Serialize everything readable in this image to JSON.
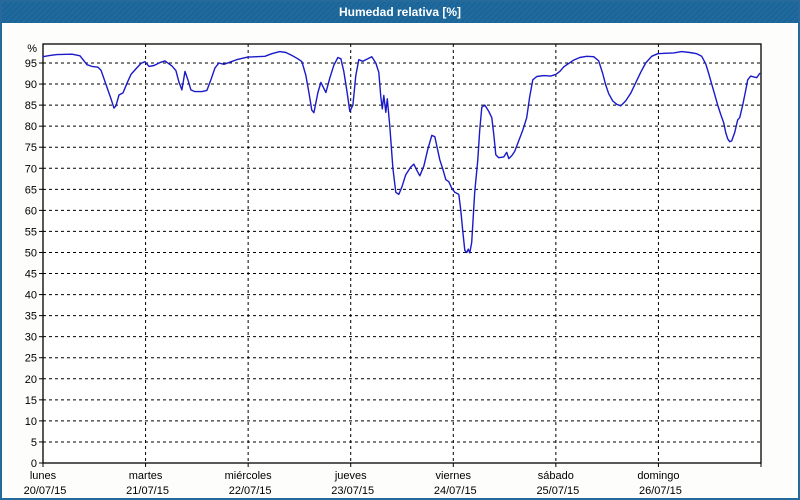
{
  "window": {
    "title": "Humedad relativa [%]"
  },
  "colors": {
    "titlebar_bg": "#1d689c",
    "outer_border": "#26699b",
    "page_bg": "#fdfefb",
    "plot_bg": "#ffffff",
    "grid": "#000000",
    "axis": "#000000",
    "line": "#1a1ac8",
    "title_text": "#ffffff",
    "label_text": "#000000"
  },
  "chart_data": {
    "type": "line",
    "title": "Humedad relativa [%]",
    "xlabel": "",
    "ylabel": "%",
    "ylim": [
      0,
      100
    ],
    "y_tick_step": 5,
    "y_ticks": [
      0,
      5,
      10,
      15,
      20,
      25,
      30,
      35,
      40,
      45,
      50,
      55,
      60,
      65,
      70,
      75,
      80,
      85,
      90,
      95
    ],
    "grid": "dashed",
    "legend_position": "none",
    "x_days": [
      {
        "name": "lunes",
        "date": "20/07/15"
      },
      {
        "name": "martes",
        "date": "21/07/15"
      },
      {
        "name": "miércoles",
        "date": "22/07/15"
      },
      {
        "name": "jueves",
        "date": "23/07/15"
      },
      {
        "name": "viernes",
        "date": "24/07/15"
      },
      {
        "name": "sábado",
        "date": "25/07/15"
      },
      {
        "name": "domingo",
        "date": "26/07/15"
      }
    ],
    "x_range_days": [
      0,
      7
    ],
    "series": [
      {
        "name": "Humedad relativa [%]",
        "color": "#1a1ac8",
        "points": [
          [
            0.0,
            96.5
          ],
          [
            0.068,
            96.8
          ],
          [
            0.136,
            97.0
          ],
          [
            0.283,
            97.1
          ],
          [
            0.361,
            96.7
          ],
          [
            0.429,
            94.6
          ],
          [
            0.477,
            94.2
          ],
          [
            0.536,
            94.0
          ],
          [
            0.565,
            93.3
          ],
          [
            0.624,
            89.2
          ],
          [
            0.663,
            86.5
          ],
          [
            0.692,
            84.3
          ],
          [
            0.711,
            84.8
          ],
          [
            0.741,
            87.4
          ],
          [
            0.78,
            87.9
          ],
          [
            0.819,
            90.2
          ],
          [
            0.858,
            92.3
          ],
          [
            0.906,
            93.6
          ],
          [
            0.955,
            94.9
          ],
          [
            0.994,
            95.3
          ],
          [
            1.033,
            94.2
          ],
          [
            1.082,
            94.4
          ],
          [
            1.14,
            95.1
          ],
          [
            1.189,
            95.5
          ],
          [
            1.257,
            94.3
          ],
          [
            1.296,
            93.2
          ],
          [
            1.325,
            90.5
          ],
          [
            1.354,
            88.6
          ],
          [
            1.384,
            93.0
          ],
          [
            1.413,
            91.0
          ],
          [
            1.442,
            88.6
          ],
          [
            1.481,
            88.2
          ],
          [
            1.549,
            88.2
          ],
          [
            1.598,
            88.5
          ],
          [
            1.637,
            91.0
          ],
          [
            1.676,
            93.8
          ],
          [
            1.715,
            95.0
          ],
          [
            1.764,
            94.7
          ],
          [
            1.822,
            95.2
          ],
          [
            1.89,
            95.8
          ],
          [
            1.997,
            96.4
          ],
          [
            2.085,
            96.5
          ],
          [
            2.163,
            96.6
          ],
          [
            2.231,
            97.2
          ],
          [
            2.309,
            97.7
          ],
          [
            2.368,
            97.5
          ],
          [
            2.426,
            96.8
          ],
          [
            2.485,
            96.0
          ],
          [
            2.524,
            95.3
          ],
          [
            2.563,
            92.0
          ],
          [
            2.592,
            88.0
          ],
          [
            2.621,
            83.8
          ],
          [
            2.641,
            83.2
          ],
          [
            2.68,
            88.0
          ],
          [
            2.709,
            90.4
          ],
          [
            2.738,
            89.0
          ],
          [
            2.758,
            88.0
          ],
          [
            2.797,
            91.5
          ],
          [
            2.836,
            94.5
          ],
          [
            2.875,
            96.3
          ],
          [
            2.904,
            96.0
          ],
          [
            2.933,
            93.0
          ],
          [
            2.962,
            88.5
          ],
          [
            2.991,
            83.5
          ],
          [
            3.021,
            85.0
          ],
          [
            3.05,
            92.0
          ],
          [
            3.079,
            95.8
          ],
          [
            3.118,
            95.4
          ],
          [
            3.157,
            95.9
          ],
          [
            3.206,
            96.5
          ],
          [
            3.245,
            95.0
          ],
          [
            3.274,
            92.8
          ],
          [
            3.293,
            87.0
          ],
          [
            3.308,
            84.1
          ],
          [
            3.323,
            87.3
          ],
          [
            3.342,
            83.3
          ],
          [
            3.357,
            86.5
          ],
          [
            3.381,
            80.0
          ],
          [
            3.411,
            70.0
          ],
          [
            3.44,
            64.3
          ],
          [
            3.469,
            63.8
          ],
          [
            3.498,
            65.5
          ],
          [
            3.537,
            68.5
          ],
          [
            3.586,
            70.3
          ],
          [
            3.615,
            71.0
          ],
          [
            3.645,
            69.5
          ],
          [
            3.674,
            68.2
          ],
          [
            3.713,
            70.5
          ],
          [
            3.752,
            74.5
          ],
          [
            3.791,
            77.8
          ],
          [
            3.82,
            77.5
          ],
          [
            3.869,
            72.0
          ],
          [
            3.898,
            69.8
          ],
          [
            3.927,
            67.3
          ],
          [
            3.956,
            66.8
          ],
          [
            3.985,
            65.3
          ],
          [
            4.015,
            64.3
          ],
          [
            4.054,
            63.8
          ],
          [
            4.073,
            60.0
          ],
          [
            4.093,
            55.0
          ],
          [
            4.112,
            50.5
          ],
          [
            4.132,
            50.0
          ],
          [
            4.146,
            50.8
          ],
          [
            4.161,
            49.9
          ],
          [
            4.18,
            52.4
          ],
          [
            4.209,
            64.3
          ],
          [
            4.239,
            72.0
          ],
          [
            4.258,
            79.0
          ],
          [
            4.278,
            84.5
          ],
          [
            4.307,
            85.0
          ],
          [
            4.346,
            83.5
          ],
          [
            4.375,
            82.0
          ],
          [
            4.395,
            78.0
          ],
          [
            4.414,
            73.2
          ],
          [
            4.443,
            72.5
          ],
          [
            4.492,
            72.7
          ],
          [
            4.521,
            73.8
          ],
          [
            4.541,
            72.3
          ],
          [
            4.57,
            73.0
          ],
          [
            4.599,
            74.0
          ],
          [
            4.638,
            76.5
          ],
          [
            4.677,
            79.0
          ],
          [
            4.716,
            82.0
          ],
          [
            4.745,
            87.0
          ],
          [
            4.775,
            91.0
          ],
          [
            4.814,
            91.8
          ],
          [
            4.882,
            92.0
          ],
          [
            4.95,
            91.9
          ],
          [
            4.999,
            92.3
          ],
          [
            5.038,
            93.0
          ],
          [
            5.077,
            94.1
          ],
          [
            5.125,
            94.9
          ],
          [
            5.174,
            95.7
          ],
          [
            5.233,
            96.3
          ],
          [
            5.301,
            96.6
          ],
          [
            5.369,
            96.5
          ],
          [
            5.418,
            95.5
          ],
          [
            5.457,
            92.5
          ],
          [
            5.486,
            89.8
          ],
          [
            5.515,
            87.7
          ],
          [
            5.554,
            86.0
          ],
          [
            5.593,
            85.2
          ],
          [
            5.632,
            84.8
          ],
          [
            5.681,
            86.0
          ],
          [
            5.73,
            87.8
          ],
          [
            5.778,
            90.3
          ],
          [
            5.827,
            92.8
          ],
          [
            5.876,
            95.0
          ],
          [
            5.934,
            96.6
          ],
          [
            5.993,
            97.2
          ],
          [
            6.061,
            97.3
          ],
          [
            6.149,
            97.4
          ],
          [
            6.227,
            97.7
          ],
          [
            6.305,
            97.5
          ],
          [
            6.373,
            97.2
          ],
          [
            6.422,
            96.6
          ],
          [
            6.461,
            94.8
          ],
          [
            6.49,
            92.5
          ],
          [
            6.519,
            90.0
          ],
          [
            6.549,
            87.5
          ],
          [
            6.578,
            85.0
          ],
          [
            6.607,
            82.8
          ],
          [
            6.636,
            80.8
          ],
          [
            6.656,
            78.5
          ],
          [
            6.675,
            77.0
          ],
          [
            6.695,
            76.3
          ],
          [
            6.714,
            76.5
          ],
          [
            6.744,
            78.5
          ],
          [
            6.773,
            81.5
          ],
          [
            6.792,
            82.0
          ],
          [
            6.822,
            85.0
          ],
          [
            6.851,
            88.5
          ],
          [
            6.87,
            91.0
          ],
          [
            6.9,
            91.9
          ],
          [
            6.929,
            91.7
          ],
          [
            6.958,
            91.5
          ],
          [
            6.987,
            92.5
          ]
        ]
      }
    ]
  }
}
